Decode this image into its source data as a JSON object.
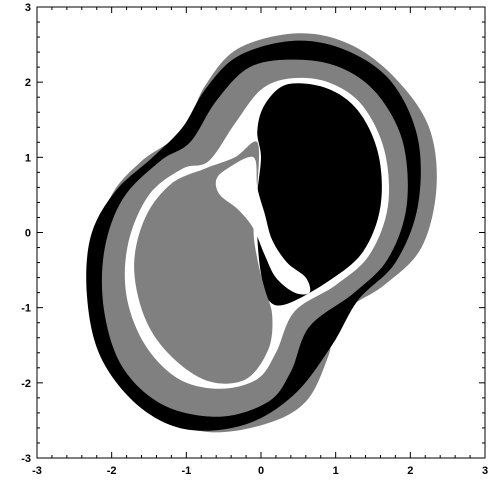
{
  "chart_data": {
    "type": "other",
    "title": "",
    "xlabel": "",
    "ylabel": "",
    "xlim": [
      -3,
      3
    ],
    "ylim": [
      -3,
      3
    ],
    "grid": false,
    "x_ticks": [
      -3,
      -2,
      -1,
      0,
      1,
      2,
      3
    ],
    "y_ticks": [
      -3,
      -2,
      -1,
      0,
      1,
      2,
      3
    ],
    "x_tick_labels": [
      "-3",
      "-2",
      "-1",
      "0",
      "1",
      "2",
      "3"
    ],
    "y_tick_labels": [
      "-3",
      "-2",
      "-1",
      "0",
      "1",
      "2",
      "3"
    ],
    "colors": {
      "background": "#ffffff",
      "gray_region": "#808080",
      "black_region": "#000000",
      "white_region": "#ffffff"
    },
    "regions": [
      {
        "fill": "gray",
        "shape": "outer-band",
        "points": [
          [
            0.5,
            2.65
          ],
          [
            1.2,
            2.5
          ],
          [
            1.8,
            2.05
          ],
          [
            2.25,
            1.4
          ],
          [
            2.35,
            0.6
          ],
          [
            2.15,
            -0.2
          ],
          [
            1.65,
            -0.7
          ],
          [
            1.05,
            -1.1
          ],
          [
            0.9,
            -1.65
          ],
          [
            0.6,
            -2.25
          ],
          [
            0.05,
            -2.55
          ],
          [
            -0.75,
            -2.65
          ],
          [
            -1.55,
            -2.35
          ],
          [
            -2.1,
            -1.75
          ],
          [
            -2.3,
            -1.0
          ],
          [
            -2.25,
            -0.2
          ],
          [
            -2.0,
            0.5
          ],
          [
            -1.6,
            0.95
          ],
          [
            -1.05,
            1.35
          ],
          [
            -0.75,
            1.95
          ],
          [
            -0.3,
            2.45
          ]
        ]
      },
      {
        "fill": "black",
        "shape": "outer-band",
        "points": [
          [
            0.45,
            2.55
          ],
          [
            1.15,
            2.42
          ],
          [
            1.75,
            2.0
          ],
          [
            2.1,
            1.25
          ],
          [
            2.1,
            0.35
          ],
          [
            1.8,
            -0.4
          ],
          [
            1.3,
            -0.9
          ],
          [
            0.95,
            -1.5
          ],
          [
            0.45,
            -2.15
          ],
          [
            -0.2,
            -2.55
          ],
          [
            -1.0,
            -2.62
          ],
          [
            -1.65,
            -2.3
          ],
          [
            -2.15,
            -1.65
          ],
          [
            -2.33,
            -0.85
          ],
          [
            -2.28,
            -0.05
          ],
          [
            -1.95,
            0.55
          ],
          [
            -1.45,
            1.0
          ],
          [
            -1.05,
            1.4
          ],
          [
            -0.75,
            1.9
          ],
          [
            -0.3,
            2.35
          ]
        ]
      },
      {
        "fill": "gray",
        "shape": "inner-band",
        "points": [
          [
            0.45,
            2.3
          ],
          [
            1.05,
            2.2
          ],
          [
            1.55,
            1.85
          ],
          [
            1.9,
            1.2
          ],
          [
            1.95,
            0.35
          ],
          [
            1.7,
            -0.35
          ],
          [
            1.25,
            -0.8
          ],
          [
            0.65,
            -1.25
          ],
          [
            0.4,
            -1.85
          ],
          [
            0.1,
            -2.25
          ],
          [
            -0.55,
            -2.45
          ],
          [
            -1.3,
            -2.3
          ],
          [
            -1.85,
            -1.8
          ],
          [
            -2.1,
            -1.05
          ],
          [
            -2.1,
            -0.25
          ],
          [
            -1.85,
            0.45
          ],
          [
            -1.35,
            0.95
          ],
          [
            -0.95,
            1.2
          ],
          [
            -0.6,
            1.75
          ],
          [
            -0.15,
            2.2
          ]
        ]
      },
      {
        "fill": "white",
        "shape": "ring",
        "points": [
          [
            0.4,
            2.05
          ],
          [
            0.9,
            2.0
          ],
          [
            1.35,
            1.7
          ],
          [
            1.65,
            1.1
          ],
          [
            1.7,
            0.35
          ],
          [
            1.45,
            -0.3
          ],
          [
            1.0,
            -0.7
          ],
          [
            0.45,
            -1.05
          ],
          [
            0.2,
            -1.6
          ],
          [
            -0.05,
            -1.95
          ],
          [
            -0.55,
            -2.08
          ],
          [
            -1.1,
            -1.95
          ],
          [
            -1.55,
            -1.5
          ],
          [
            -1.8,
            -0.85
          ],
          [
            -1.78,
            -0.15
          ],
          [
            -1.5,
            0.5
          ],
          [
            -1.05,
            0.85
          ],
          [
            -0.7,
            0.95
          ],
          [
            -0.35,
            1.45
          ],
          [
            0.0,
            1.9
          ]
        ]
      },
      {
        "fill": "black",
        "shape": "right-lobe",
        "points": [
          [
            0.35,
            1.97
          ],
          [
            0.88,
            1.92
          ],
          [
            1.3,
            1.62
          ],
          [
            1.57,
            1.05
          ],
          [
            1.6,
            0.35
          ],
          [
            1.37,
            -0.25
          ],
          [
            0.93,
            -0.63
          ],
          [
            0.35,
            -0.95
          ],
          [
            0.1,
            -0.9
          ],
          [
            0.0,
            -0.55
          ],
          [
            -0.05,
            -0.05
          ],
          [
            -0.05,
            0.5
          ],
          [
            0.0,
            1.0
          ],
          [
            -0.05,
            1.35
          ],
          [
            0.05,
            1.7
          ]
        ]
      },
      {
        "fill": "gray",
        "shape": "left-lobe",
        "points": [
          [
            -0.05,
            1.2
          ],
          [
            -0.35,
            1.0
          ],
          [
            -0.75,
            0.85
          ],
          [
            -1.2,
            0.65
          ],
          [
            -1.55,
            0.2
          ],
          [
            -1.7,
            -0.45
          ],
          [
            -1.55,
            -1.15
          ],
          [
            -1.2,
            -1.65
          ],
          [
            -0.7,
            -1.98
          ],
          [
            -0.2,
            -1.95
          ],
          [
            0.1,
            -1.55
          ],
          [
            0.15,
            -1.1
          ],
          [
            0.05,
            -0.75
          ],
          [
            -0.05,
            -0.35
          ],
          [
            -0.1,
            0.05
          ],
          [
            -0.05,
            0.6
          ]
        ]
      },
      {
        "fill": "white",
        "shape": "crescent",
        "points": [
          [
            -0.1,
            1.0
          ],
          [
            -0.45,
            0.85
          ],
          [
            -0.6,
            0.7
          ],
          [
            -0.55,
            0.5
          ],
          [
            -0.3,
            0.3
          ],
          [
            -0.1,
            0.05
          ],
          [
            0.05,
            -0.3
          ],
          [
            0.2,
            -0.6
          ],
          [
            0.45,
            -0.8
          ],
          [
            0.65,
            -0.8
          ],
          [
            0.6,
            -0.6
          ],
          [
            0.35,
            -0.4
          ],
          [
            0.15,
            -0.1
          ],
          [
            0.05,
            0.25
          ],
          [
            -0.05,
            0.6
          ]
        ]
      }
    ]
  }
}
